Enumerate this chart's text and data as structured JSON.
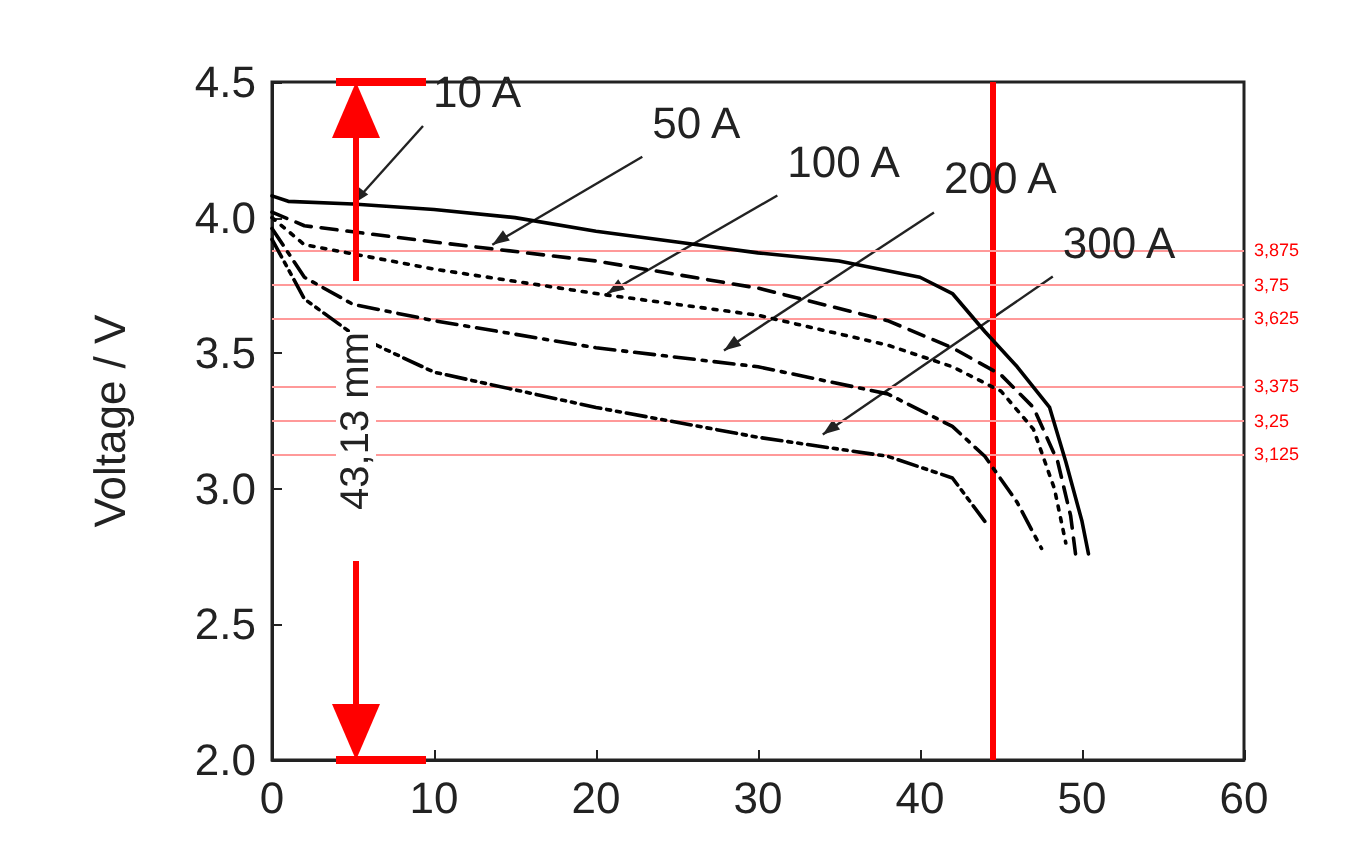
{
  "chart_data": {
    "type": "line",
    "ylabel": "Voltage / V",
    "xlim": [
      0,
      60
    ],
    "xticks": [
      0,
      10,
      20,
      30,
      40,
      50,
      60
    ],
    "ylim": [
      2.0,
      4.5
    ],
    "yticks": [
      {
        "value": 2.0,
        "label": "2.0"
      },
      {
        "value": 2.5,
        "label": "2.5"
      },
      {
        "value": 3.0,
        "label": "3.0"
      },
      {
        "value": 3.5,
        "label": "3.5"
      },
      {
        "value": 4.0,
        "label": "4.0"
      },
      {
        "value": 4.5,
        "label": "4.5"
      }
    ],
    "grid": false,
    "marker": "none",
    "series": [
      {
        "color": "#000000",
        "line_style": "solid",
        "x": [
          0,
          1,
          5,
          10,
          15,
          20,
          25,
          30,
          35,
          40,
          42,
          44,
          46,
          48,
          49,
          50,
          50.4
        ],
        "values": [
          4.08,
          4.06,
          4.05,
          4.03,
          4.0,
          3.95,
          3.91,
          3.87,
          3.84,
          3.78,
          3.72,
          3.58,
          3.45,
          3.3,
          3.1,
          2.88,
          2.76
        ]
      },
      {
        "color": "#000000",
        "line_style": "dashed",
        "x": [
          0,
          2,
          10,
          20,
          30,
          38,
          42,
          45,
          47,
          48.5,
          49.3,
          49.6
        ],
        "values": [
          4.02,
          3.97,
          3.91,
          3.84,
          3.74,
          3.62,
          3.52,
          3.42,
          3.3,
          3.1,
          2.9,
          2.76
        ]
      },
      {
        "color": "#000000",
        "line_style": "dotted",
        "x": [
          0,
          2,
          10,
          20,
          30,
          38,
          42,
          45,
          47,
          48.3,
          49
        ],
        "values": [
          4.0,
          3.9,
          3.81,
          3.72,
          3.64,
          3.53,
          3.45,
          3.36,
          3.22,
          3.0,
          2.8
        ]
      },
      {
        "color": "#000000",
        "line_style": "dashdot",
        "x": [
          0,
          2,
          5,
          10,
          20,
          30,
          38,
          42,
          44,
          46,
          47.5
        ],
        "values": [
          3.96,
          3.78,
          3.68,
          3.62,
          3.52,
          3.45,
          3.35,
          3.23,
          3.12,
          2.95,
          2.78
        ]
      },
      {
        "color": "#000000",
        "line_style": "dashdotdot",
        "x": [
          0,
          2,
          5,
          10,
          20,
          30,
          38,
          42,
          44
        ],
        "values": [
          3.92,
          3.7,
          3.57,
          3.43,
          3.3,
          3.19,
          3.12,
          3.04,
          2.88
        ]
      }
    ],
    "annotations": [
      {
        "text": "10 A",
        "x": 5,
        "y": 4.05
      },
      {
        "text": "50 A",
        "x": 13.6,
        "y": 3.9
      },
      {
        "text": "100 A",
        "x": 20.7,
        "y": 3.72
      },
      {
        "text": "200 A",
        "x": 27.9,
        "y": 3.51
      },
      {
        "text": "300 A",
        "x": 34,
        "y": 3.2
      },
      "43,13 mm"
    ],
    "ref_lines": [
      {
        "axis": "x",
        "value": 44.5,
        "label": null,
        "color": "#ff0000"
      },
      {
        "axis": "y",
        "value": 3.75,
        "label": "3,75",
        "color": "#ff9999"
      },
      {
        "axis": "y",
        "value": 3.25,
        "label": "3,25",
        "color": "#ff9999"
      },
      {
        "axis": "y",
        "value": 3.875,
        "label": "3,875",
        "color": "#ff9999"
      },
      {
        "axis": "y",
        "value": 3.625,
        "label": "3,625",
        "color": "#ff9999"
      },
      {
        "axis": "y",
        "value": 3.375,
        "label": "3,375",
        "color": "#ff9999"
      },
      {
        "axis": "y",
        "value": 3.125,
        "label": "3,125",
        "color": "#ff9999"
      }
    ]
  }
}
